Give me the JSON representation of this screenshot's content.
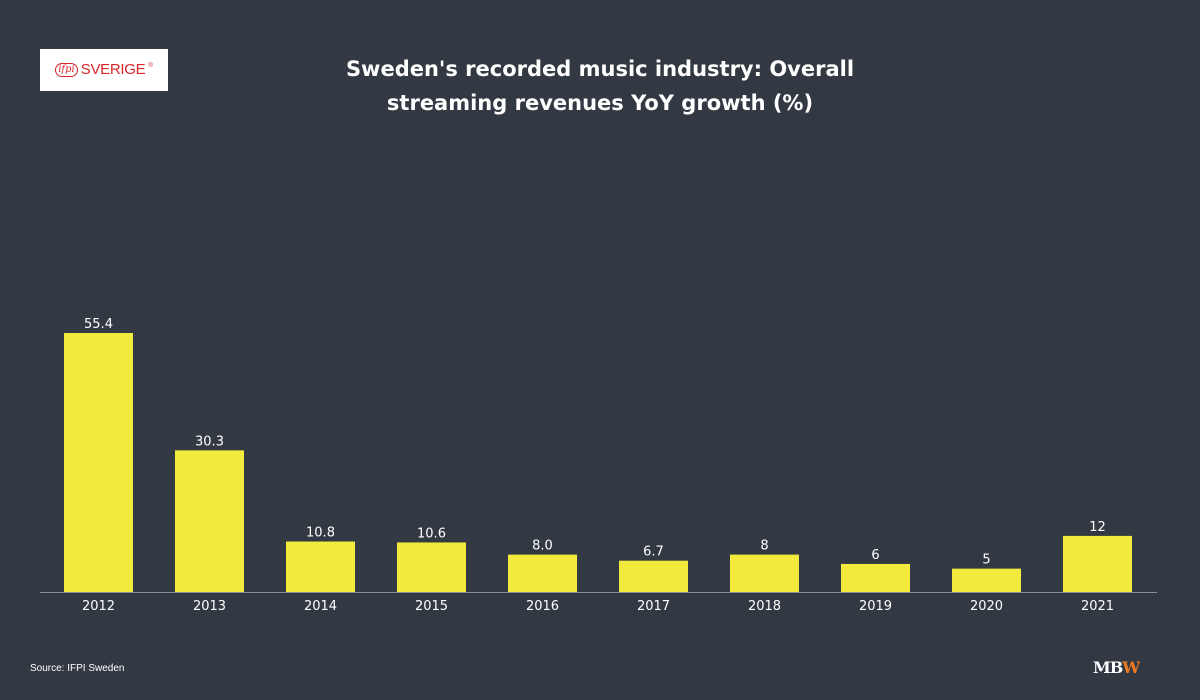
{
  "logo": {
    "mark": "ifpi",
    "text": "SVERIGE",
    "tm": "®"
  },
  "title_line1": "Sweden's recorded music industry: Overall",
  "title_line2": "streaming revenues YoY growth (%)",
  "source": "Source: IFPI Sweden",
  "brand": {
    "part1": "MB",
    "part2": "W"
  },
  "colors": {
    "background": "#333943",
    "bar": "#f2ea3c",
    "text": "#ffffff",
    "axis": "#8a8f96",
    "brand_accent": "#f07c22"
  },
  "chart_data": {
    "type": "bar",
    "title": "Sweden's recorded music industry: Overall streaming revenues YoY growth (%)",
    "categories": [
      "2012",
      "2013",
      "2014",
      "2015",
      "2016",
      "2017",
      "2018",
      "2019",
      "2020",
      "2021"
    ],
    "values": [
      55.4,
      30.3,
      10.8,
      10.6,
      8.0,
      6.7,
      8,
      6,
      5,
      12
    ],
    "value_labels": [
      "55.4",
      "30.3",
      "10.8",
      "10.6",
      "8.0",
      "6.7",
      "8",
      "6",
      "5",
      "12"
    ],
    "xlabel": "",
    "ylabel": "",
    "ylim": [
      0,
      55.4
    ],
    "grid": false,
    "legend": "none"
  }
}
